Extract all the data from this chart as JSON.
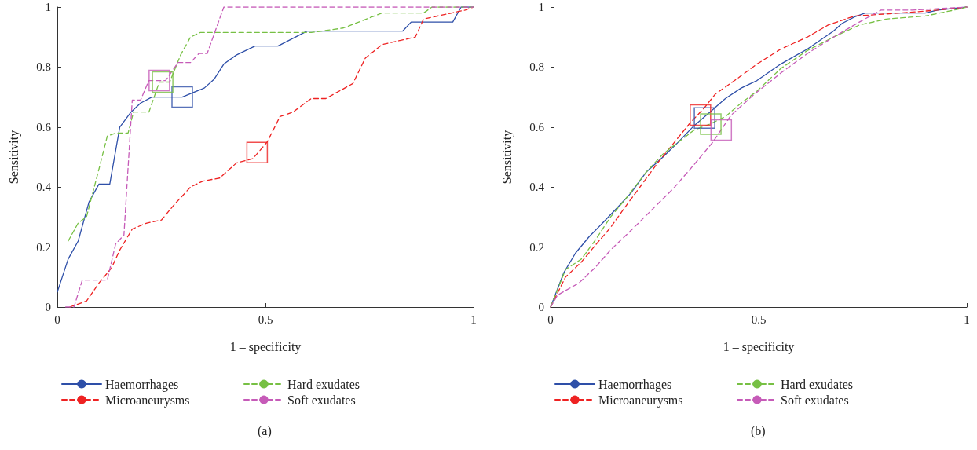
{
  "chart_data": [
    {
      "type": "line",
      "xlabel": "1 – specificity",
      "ylabel": "Sensitivity",
      "annotations": [
        "(a)"
      ],
      "xlim": [
        0,
        1
      ],
      "ylim": [
        0,
        1
      ],
      "xticks": [
        0,
        0.5,
        1
      ],
      "yticks": [
        0,
        0.2,
        0.4,
        0.6,
        0.8,
        1
      ],
      "grid": false,
      "legend": "bottom",
      "marker": "none",
      "series": [
        {
          "name": "Haemorrhages",
          "color": "#2e4fa8",
          "line_style": "solid",
          "x": [
            0,
            0.026,
            0.05,
            0.076,
            0.1,
            0.126,
            0.15,
            0.177,
            0.2,
            0.227,
            0.3,
            0.353,
            0.377,
            0.4,
            0.43,
            0.475,
            0.53,
            0.6,
            0.83,
            0.85,
            0.95,
            0.97,
            1
          ],
          "values": [
            0.05,
            0.16,
            0.22,
            0.35,
            0.41,
            0.41,
            0.6,
            0.65,
            0.68,
            0.7,
            0.7,
            0.73,
            0.76,
            0.81,
            0.84,
            0.87,
            0.87,
            0.92,
            0.92,
            0.95,
            0.95,
            1,
            1
          ]
        },
        {
          "name": "Microaneurysms",
          "color": "#ee2222",
          "line_style": "dashed",
          "x": [
            0.03,
            0.07,
            0.1,
            0.13,
            0.15,
            0.18,
            0.215,
            0.25,
            0.28,
            0.32,
            0.35,
            0.39,
            0.43,
            0.47,
            0.504,
            0.535,
            0.566,
            0.61,
            0.645,
            0.71,
            0.74,
            0.78,
            0.86,
            0.88,
            0.98,
            1
          ],
          "values": [
            0,
            0.02,
            0.08,
            0.13,
            0.19,
            0.26,
            0.28,
            0.29,
            0.34,
            0.4,
            0.42,
            0.43,
            0.48,
            0.495,
            0.55,
            0.635,
            0.65,
            0.695,
            0.695,
            0.745,
            0.83,
            0.875,
            0.9,
            0.96,
            0.99,
            1
          ]
        },
        {
          "name": "Hard exudates",
          "color": "#77c044",
          "line_style": "dashed",
          "x": [
            0.026,
            0.05,
            0.07,
            0.1,
            0.12,
            0.14,
            0.17,
            0.183,
            0.22,
            0.245,
            0.27,
            0.296,
            0.32,
            0.343,
            0.61,
            0.687,
            0.78,
            0.88,
            0.9,
            1
          ],
          "values": [
            0.22,
            0.28,
            0.3,
            0.46,
            0.57,
            0.58,
            0.58,
            0.65,
            0.65,
            0.75,
            0.75,
            0.84,
            0.9,
            0.915,
            0.915,
            0.93,
            0.98,
            0.98,
            1,
            1
          ]
        },
        {
          "name": "Soft exudates",
          "color": "#c65bb8",
          "line_style": "dashed",
          "x": [
            0.02,
            0.04,
            0.06,
            0.12,
            0.14,
            0.16,
            0.18,
            0.2,
            0.22,
            0.26,
            0.29,
            0.32,
            0.34,
            0.36,
            0.4,
            1
          ],
          "values": [
            0,
            0,
            0.09,
            0.09,
            0.21,
            0.24,
            0.69,
            0.69,
            0.755,
            0.755,
            0.815,
            0.815,
            0.845,
            0.845,
            1,
            1
          ]
        },
        {
          "type": "scatter",
          "marker": "square",
          "color": "#2e4fa8",
          "x": [
            0.3
          ],
          "values": [
            0.7
          ]
        },
        {
          "type": "scatter",
          "marker": "square",
          "color": "#ee2222",
          "x": [
            0.48
          ],
          "values": [
            0.515
          ]
        },
        {
          "type": "scatter",
          "marker": "square",
          "color": "#77c044",
          "x": [
            0.253
          ],
          "values": [
            0.75
          ]
        },
        {
          "type": "scatter",
          "marker": "square",
          "color": "#c65bb8",
          "x": [
            0.245
          ],
          "values": [
            0.755
          ]
        }
      ]
    },
    {
      "type": "line",
      "xlabel": "1 – specificity",
      "ylabel": "Sensitivity",
      "annotations": [
        "(b)"
      ],
      "xlim": [
        0,
        1
      ],
      "ylim": [
        0,
        1
      ],
      "xticks": [
        0,
        0.5,
        1
      ],
      "yticks": [
        0,
        0.2,
        0.4,
        0.6,
        0.8,
        1
      ],
      "grid": false,
      "legend": "bottom",
      "marker": "none",
      "series": [
        {
          "name": "Haemorrhages",
          "color": "#2e4fa8",
          "line_style": "solid",
          "x": [
            0,
            0.032,
            0.06,
            0.093,
            0.125,
            0.163,
            0.193,
            0.23,
            0.27,
            0.307,
            0.345,
            0.383,
            0.42,
            0.458,
            0.496,
            0.553,
            0.617,
            0.68,
            0.7,
            0.73,
            0.756,
            0.9,
            0.93,
            1
          ],
          "values": [
            0,
            0.115,
            0.18,
            0.235,
            0.28,
            0.335,
            0.38,
            0.45,
            0.5,
            0.55,
            0.605,
            0.65,
            0.695,
            0.73,
            0.755,
            0.81,
            0.86,
            0.92,
            0.945,
            0.967,
            0.98,
            0.98,
            0.99,
            1
          ]
        },
        {
          "name": "Microaneurysms",
          "color": "#ee2222",
          "line_style": "dashed",
          "x": [
            0,
            0.036,
            0.074,
            0.11,
            0.144,
            0.18,
            0.22,
            0.257,
            0.295,
            0.333,
            0.37,
            0.396,
            0.447,
            0.496,
            0.553,
            0.617,
            0.667,
            0.73,
            0.84,
            0.93,
            1
          ],
          "values": [
            0,
            0.1,
            0.15,
            0.21,
            0.265,
            0.335,
            0.41,
            0.48,
            0.545,
            0.61,
            0.665,
            0.71,
            0.76,
            0.81,
            0.86,
            0.9,
            0.94,
            0.97,
            0.98,
            0.99,
            1
          ]
        },
        {
          "name": "Hard exudates",
          "color": "#77c044",
          "line_style": "dashed",
          "x": [
            0,
            0.036,
            0.074,
            0.106,
            0.144,
            0.18,
            0.23,
            0.27,
            0.307,
            0.345,
            0.383,
            0.42,
            0.458,
            0.496,
            0.553,
            0.617,
            0.68,
            0.742,
            0.807,
            0.9,
            0.97,
            1
          ],
          "values": [
            0,
            0.125,
            0.16,
            0.22,
            0.3,
            0.36,
            0.45,
            0.51,
            0.55,
            0.59,
            0.61,
            0.635,
            0.68,
            0.72,
            0.795,
            0.855,
            0.9,
            0.94,
            0.96,
            0.97,
            0.99,
            1
          ]
        },
        {
          "name": "Soft exudates",
          "color": "#c65bb8",
          "line_style": "dashed",
          "x": [
            0,
            0.017,
            0.068,
            0.106,
            0.144,
            0.193,
            0.244,
            0.295,
            0.345,
            0.39,
            0.434,
            0.49,
            0.553,
            0.617,
            0.68,
            0.742,
            0.794,
            0.87,
            1
          ],
          "values": [
            0,
            0.04,
            0.08,
            0.13,
            0.19,
            0.255,
            0.325,
            0.395,
            0.475,
            0.55,
            0.64,
            0.71,
            0.78,
            0.845,
            0.9,
            0.95,
            0.99,
            0.99,
            1
          ]
        },
        {
          "type": "scatter",
          "marker": "square",
          "color": "#2e4fa8",
          "x": [
            0.37
          ],
          "values": [
            0.63
          ]
        },
        {
          "type": "scatter",
          "marker": "square",
          "color": "#ee2222",
          "x": [
            0.36
          ],
          "values": [
            0.64
          ]
        },
        {
          "type": "scatter",
          "marker": "square",
          "color": "#77c044",
          "x": [
            0.385
          ],
          "values": [
            0.61
          ]
        },
        {
          "type": "scatter",
          "marker": "square",
          "color": "#c65bb8",
          "x": [
            0.41
          ],
          "values": [
            0.59
          ]
        }
      ]
    }
  ]
}
